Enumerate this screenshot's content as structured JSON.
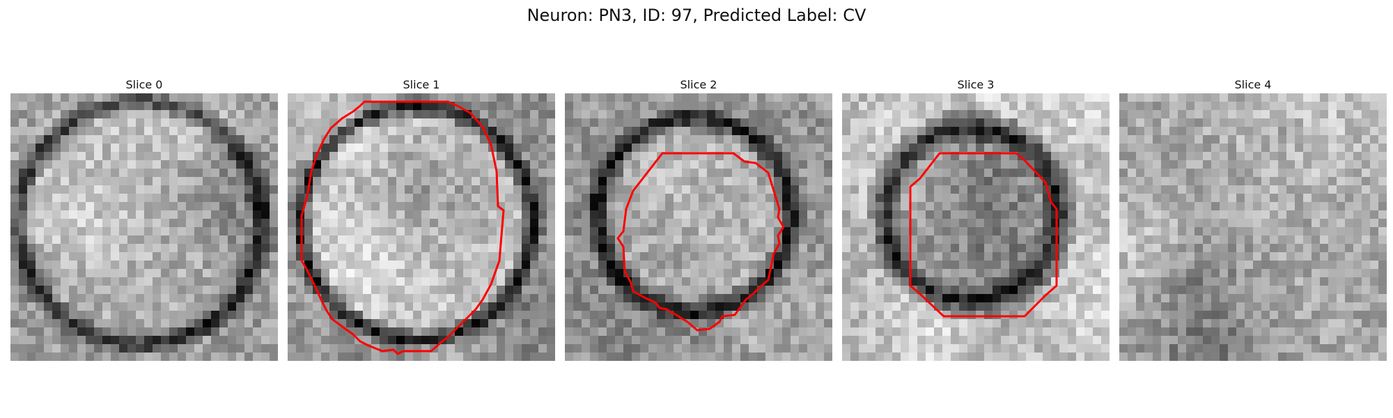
{
  "figure": {
    "title": "Neuron: PN3, ID: 97, Predicted Label: CV"
  },
  "panels": [
    {
      "title": "Slice 0",
      "has_contour": false
    },
    {
      "title": "Slice 1",
      "has_contour": true
    },
    {
      "title": "Slice 2",
      "has_contour": true
    },
    {
      "title": "Slice 3",
      "has_contour": true
    },
    {
      "title": "Slice 4",
      "has_contour": false
    }
  ],
  "colors": {
    "contour": "#ff0000",
    "background": "#ffffff"
  },
  "image": {
    "colormap": "grayscale",
    "grid": "32x32 pixelated electron-microscopy crop"
  }
}
